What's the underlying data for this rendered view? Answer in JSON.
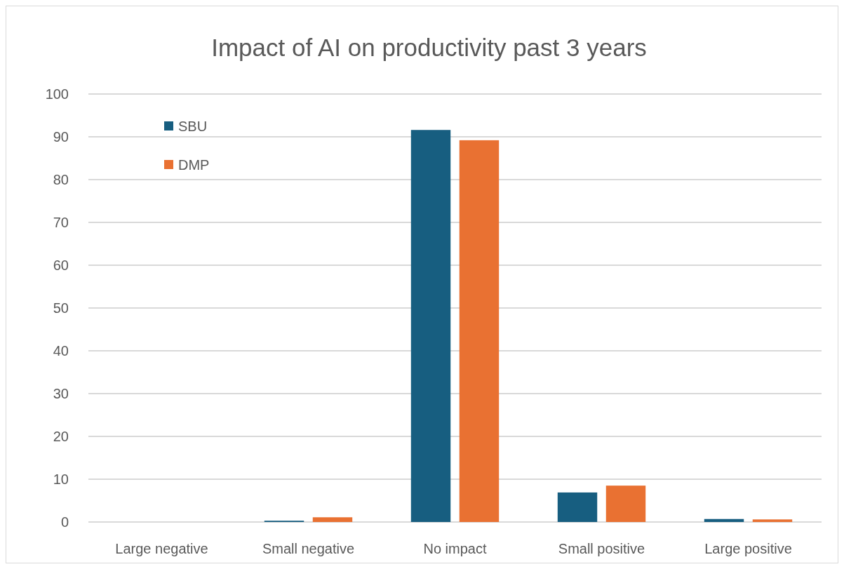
{
  "chart_data": {
    "type": "bar",
    "title": "Impact of AI on productivity past 3 years",
    "categories": [
      "Large negative",
      "Small negative",
      "No impact",
      "Small positive",
      "Large positive"
    ],
    "series": [
      {
        "name": "SBU",
        "color": "#175e80",
        "values": [
          0,
          0.3,
          91.6,
          6.9,
          0.7
        ]
      },
      {
        "name": "DMP",
        "color": "#e97132",
        "values": [
          0,
          1.1,
          89.2,
          8.5,
          0.6
        ]
      }
    ],
    "ylim": [
      0,
      100
    ],
    "yticks": [
      0,
      10,
      20,
      30,
      40,
      50,
      60,
      70,
      80,
      90,
      100
    ],
    "grid": "y",
    "legend": "top left"
  }
}
